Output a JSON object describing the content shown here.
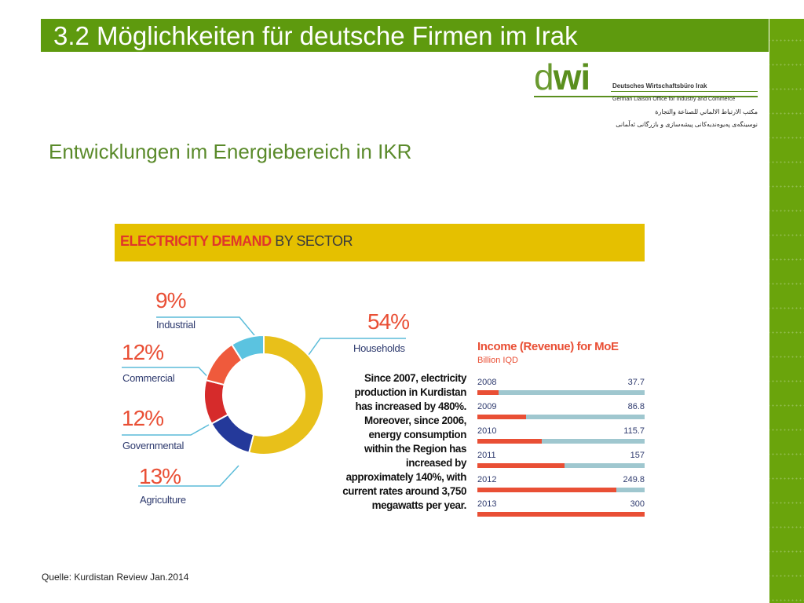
{
  "slide": {
    "title": "3.2 Möglichkeiten für deutsche Firmen im Irak",
    "subtitle": "Entwicklungen im Energiebereich in IKR",
    "source": "Quelle: Kurdistan Review Jan.2014"
  },
  "logo": {
    "wordmark_d": "d",
    "wordmark_rest": "wi",
    "line1": "Deutsches Wirtschaftsbüro Irak",
    "line2": "German Liaison Office for Industry and Commerce",
    "line3": "مكتب الارتباط الالماني للصناعة والتجارة",
    "line4": "نوسینگەی پەیوەندیەکانی پیشەسازی و بازرگانی ئەڵمانی"
  },
  "colors": {
    "title_bar": "#5e9a0e",
    "households": "#e8c01a",
    "agriculture": "#24399a",
    "governmental": "#d62b2b",
    "commercial": "#ef5a3c",
    "industrial": "#5bc3e0",
    "accent": "#e94f35",
    "bar_track": "#9fc7cf"
  },
  "paragraph": "Since 2007, electricity production in Kurdistan has increased by 480%. Moreover, since 2006, energy consumption within the Region has increased by approximately 140%, with current rates around 3,750 megawatts per year.",
  "chart_data": [
    {
      "type": "pie",
      "title_part1": "ELECTRICITY DEMAND",
      "title_part2": " BY SECTOR",
      "categories": [
        "Households",
        "Agriculture",
        "Governmental",
        "Commercial",
        "Industrial"
      ],
      "values": [
        54,
        13,
        12,
        12,
        9
      ],
      "labels": [
        "54%",
        "13%",
        "12%",
        "12%",
        "9%"
      ]
    },
    {
      "type": "bar",
      "title": "Income (Revenue) for MoE",
      "subtitle": "Billion IQD",
      "categories": [
        "2008",
        "2009",
        "2010",
        "2011",
        "2012",
        "2013"
      ],
      "values": [
        37.7,
        86.8,
        115.7,
        157,
        249.8,
        300
      ],
      "value_labels": [
        "37.7",
        "86.8",
        "115.7",
        "157",
        "249.8",
        "300"
      ],
      "xlim": [
        0,
        300
      ]
    }
  ]
}
